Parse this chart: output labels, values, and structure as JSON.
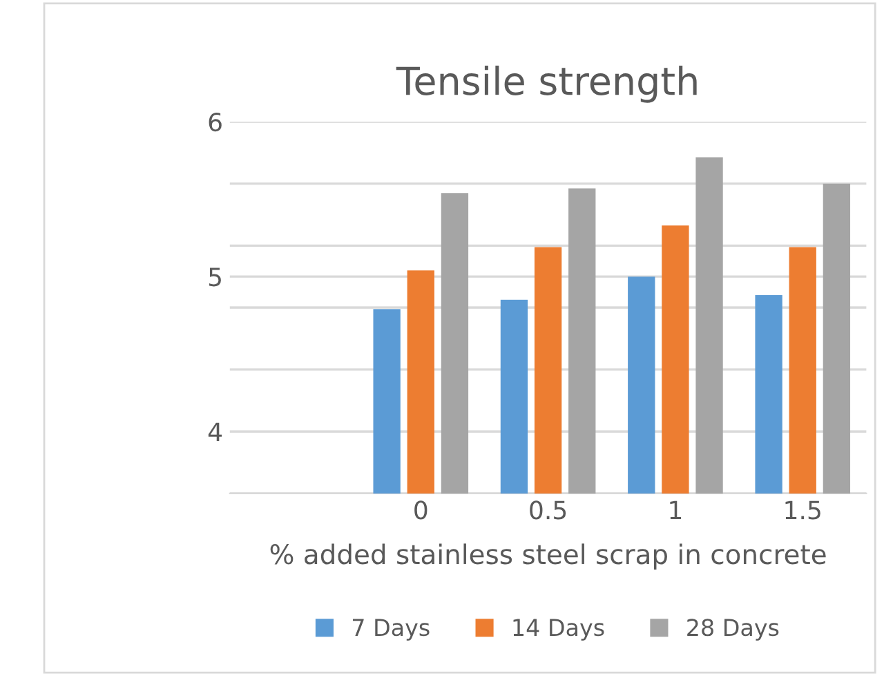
{
  "chart_data": {
    "type": "bar",
    "title": "Tensile strength",
    "xlabel": "% added stainless steel scrap in concrete",
    "categories": [
      null,
      "0",
      "0.5",
      "1",
      "1.5"
    ],
    "series": [
      {
        "name": "7 Days",
        "color": "#5b9bd5",
        "values": [
          null,
          4.79,
          4.85,
          5.0,
          4.88
        ]
      },
      {
        "name": "14 Days",
        "color": "#ed7d31",
        "values": [
          null,
          5.04,
          5.19,
          5.33,
          5.19
        ]
      },
      {
        "name": "28 Days",
        "color": "#a5a5a5",
        "values": [
          null,
          5.54,
          5.57,
          5.77,
          5.6
        ]
      }
    ],
    "ylim": [
      3.6,
      6
    ],
    "yticks": [
      {
        "value": 3.6,
        "label": null
      },
      {
        "value": 4,
        "label": "4"
      },
      {
        "value": 4.4,
        "label": null
      },
      {
        "value": 4.8,
        "label": null
      },
      {
        "value": 5,
        "label": "5"
      },
      {
        "value": 5.2,
        "label": null
      },
      {
        "value": 5.6,
        "label": null
      },
      {
        "value": 6,
        "label": "6"
      }
    ],
    "grid": "y",
    "legend": "bottom"
  }
}
